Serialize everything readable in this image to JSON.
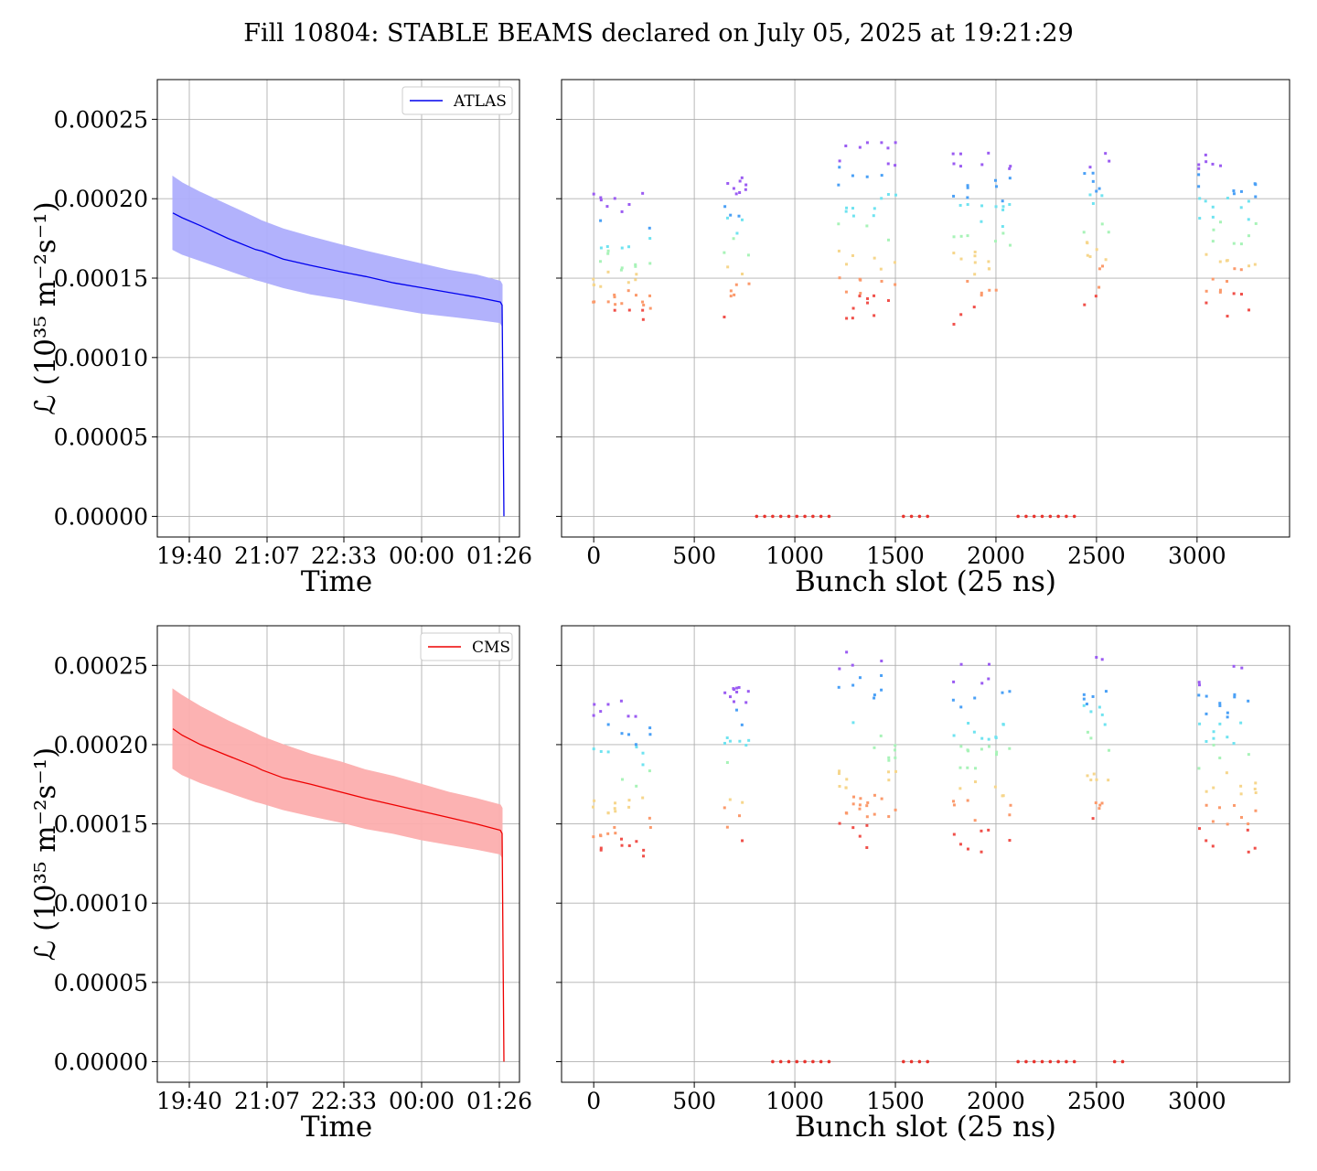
{
  "figure": {
    "title": "Fill 10804: STABLE BEAMS declared on July 05, 2025 at 19:21:29"
  },
  "chart_data": [
    {
      "type": "line",
      "panel": "atlas-time",
      "legend": "ATLAS",
      "legend_placement": "top-right",
      "xlabel": "Time",
      "ylabel": "ℒ (10³⁵ m⁻²s⁻¹)",
      "x_ticks": [
        "19:40",
        "21:07",
        "22:33",
        "00:00",
        "01:26"
      ],
      "y_ticks": [
        "0.00000",
        "0.00005",
        "0.00010",
        "0.00015",
        "0.00020",
        "0.00025"
      ],
      "ylim": [
        -1.3e-05,
        0.000275
      ],
      "grid": true,
      "color": "#0000ee",
      "band_color": "#aeaefc",
      "x": [
        "19:30",
        "19:40",
        "20:00",
        "20:30",
        "21:00",
        "21:07",
        "21:30",
        "22:00",
        "22:33",
        "23:00",
        "23:30",
        "00:00",
        "00:30",
        "01:00",
        "01:26",
        "01:28",
        "01:30"
      ],
      "y": [
        0.000191,
        0.000188,
        0.000183,
        0.000175,
        0.000168,
        0.000167,
        0.000162,
        0.000158,
        0.000154,
        0.000151,
        0.000147,
        0.000144,
        0.000141,
        0.000138,
        0.000135,
        0.000133,
        0.0
      ],
      "band_upper": [
        0.000214,
        0.00021,
        0.000204,
        0.000196,
        0.000188,
        0.000186,
        0.000181,
        0.000176,
        0.000171,
        0.000167,
        0.000163,
        0.000159,
        0.000155,
        0.000152,
        0.000148,
        0.000146,
        null
      ],
      "band_lower": [
        0.000168,
        0.000165,
        0.000161,
        0.000155,
        0.000149,
        0.000148,
        0.000144,
        0.00014,
        0.000137,
        0.000134,
        0.000131,
        0.000128,
        0.000126,
        0.000124,
        0.000122,
        0.00012,
        null
      ]
    },
    {
      "type": "scatter",
      "panel": "atlas-bunch",
      "xlabel": "Bunch slot (25 ns)",
      "x_ticks": [
        "0",
        "500",
        "1000",
        "1500",
        "2000",
        "2500",
        "3000"
      ],
      "xlim": [
        -160,
        3460
      ],
      "ylim": [
        -1.3e-05,
        0.000275
      ],
      "grid": true,
      "groups": [
        {
          "x_start": 0,
          "x_end": 280,
          "y_min": 0.000118,
          "y_max": 0.000204
        },
        {
          "x_start": 650,
          "x_end": 770,
          "y_min": 0.000123,
          "y_max": 0.000214
        },
        {
          "x_start": 1220,
          "x_end": 1500,
          "y_min": 0.000123,
          "y_max": 0.000236
        },
        {
          "x_start": 1790,
          "x_end": 2070,
          "y_min": 0.00012,
          "y_max": 0.000229
        },
        {
          "x_start": 2440,
          "x_end": 2560,
          "y_min": 0.000129,
          "y_max": 0.000233
        },
        {
          "x_start": 3010,
          "x_end": 3290,
          "y_min": 0.000126,
          "y_max": 0.000231
        }
      ],
      "zero_points_x": [
        810,
        850,
        890,
        930,
        970,
        1010,
        1050,
        1090,
        1130,
        1170,
        1540,
        1580,
        1620,
        1660,
        2110,
        2150,
        2190,
        2230,
        2270,
        2310,
        2350,
        2390
      ]
    },
    {
      "type": "line",
      "panel": "cms-time",
      "legend": "CMS",
      "legend_placement": "top-right",
      "xlabel": "Time",
      "ylabel": "ℒ (10³⁵ m⁻²s⁻¹)",
      "x_ticks": [
        "19:40",
        "21:07",
        "22:33",
        "00:00",
        "01:26"
      ],
      "y_ticks": [
        "0.00000",
        "0.00005",
        "0.00010",
        "0.00015",
        "0.00020",
        "0.00025"
      ],
      "ylim": [
        -1.3e-05,
        0.000275
      ],
      "grid": true,
      "color": "#ee0000",
      "band_color": "#fcaeae",
      "x": [
        "19:30",
        "19:40",
        "20:00",
        "20:30",
        "21:00",
        "21:07",
        "21:30",
        "22:00",
        "22:33",
        "23:00",
        "23:30",
        "00:00",
        "00:30",
        "01:00",
        "01:26",
        "01:28",
        "01:30"
      ],
      "y": [
        0.00021,
        0.000206,
        0.0002,
        0.000193,
        0.000186,
        0.000184,
        0.000179,
        0.000175,
        0.00017,
        0.000166,
        0.000162,
        0.000158,
        0.000154,
        0.00015,
        0.000146,
        0.000144,
        0.0
      ],
      "band_upper": [
        0.000235,
        0.000231,
        0.000224,
        0.000215,
        0.000207,
        0.000205,
        0.0002,
        0.000194,
        0.000189,
        0.000184,
        0.00018,
        0.000175,
        0.00017,
        0.000166,
        0.000162,
        0.00016,
        null
      ],
      "band_lower": [
        0.000185,
        0.000181,
        0.000176,
        0.00017,
        0.000164,
        0.000163,
        0.000159,
        0.000155,
        0.000151,
        0.000147,
        0.000144,
        0.00014,
        0.000137,
        0.000134,
        0.000131,
        0.000129,
        null
      ]
    },
    {
      "type": "scatter",
      "panel": "cms-bunch",
      "xlabel": "Bunch slot (25 ns)",
      "x_ticks": [
        "0",
        "500",
        "1000",
        "1500",
        "2000",
        "2500",
        "3000"
      ],
      "xlim": [
        -160,
        3460
      ],
      "ylim": [
        -1.3e-05,
        0.000275
      ],
      "grid": true,
      "groups": [
        {
          "x_start": 0,
          "x_end": 280,
          "y_min": 0.000126,
          "y_max": 0.000229
        },
        {
          "x_start": 650,
          "x_end": 770,
          "y_min": 0.000131,
          "y_max": 0.000237
        },
        {
          "x_start": 1220,
          "x_end": 1500,
          "y_min": 0.000134,
          "y_max": 0.000262
        },
        {
          "x_start": 1790,
          "x_end": 2070,
          "y_min": 0.000131,
          "y_max": 0.000251
        },
        {
          "x_start": 2440,
          "x_end": 2560,
          "y_min": 0.000142,
          "y_max": 0.000258
        },
        {
          "x_start": 3010,
          "x_end": 3290,
          "y_min": 0.000132,
          "y_max": 0.000251
        }
      ],
      "zero_points_x": [
        890,
        930,
        970,
        1010,
        1050,
        1090,
        1130,
        1170,
        1540,
        1580,
        1620,
        1660,
        2110,
        2150,
        2190,
        2230,
        2270,
        2310,
        2350,
        2390,
        2590,
        2630
      ]
    }
  ]
}
